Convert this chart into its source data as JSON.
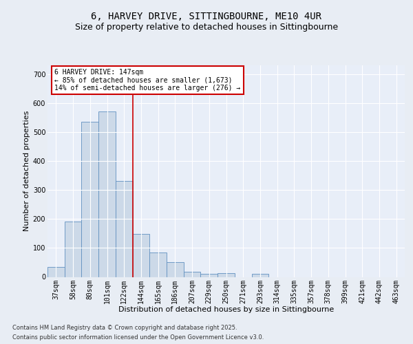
{
  "title_line1": "6, HARVEY DRIVE, SITTINGBOURNE, ME10 4UR",
  "title_line2": "Size of property relative to detached houses in Sittingbourne",
  "xlabel": "Distribution of detached houses by size in Sittingbourne",
  "ylabel": "Number of detached properties",
  "categories": [
    "37sqm",
    "58sqm",
    "80sqm",
    "101sqm",
    "122sqm",
    "144sqm",
    "165sqm",
    "186sqm",
    "207sqm",
    "229sqm",
    "250sqm",
    "271sqm",
    "293sqm",
    "314sqm",
    "335sqm",
    "357sqm",
    "378sqm",
    "399sqm",
    "421sqm",
    "442sqm",
    "463sqm"
  ],
  "bar_heights": [
    35,
    192,
    535,
    570,
    330,
    148,
    85,
    50,
    18,
    10,
    12,
    0,
    10,
    0,
    0,
    0,
    0,
    0,
    0,
    0,
    0
  ],
  "bar_color": "#ccd9e8",
  "bar_edge_color": "#6090c0",
  "vline_pos": 4.5,
  "vline_color": "#cc0000",
  "annotation_text": "6 HARVEY DRIVE: 147sqm\n← 85% of detached houses are smaller (1,673)\n14% of semi-detached houses are larger (276) →",
  "annotation_box_color": "#ffffff",
  "annotation_box_edge": "#cc0000",
  "bg_color": "#e8edf4",
  "plot_bg_color": "#e8eef8",
  "grid_color": "#ffffff",
  "yticks": [
    0,
    100,
    200,
    300,
    400,
    500,
    600,
    700
  ],
  "ylim": [
    0,
    730
  ],
  "footer_line1": "Contains HM Land Registry data © Crown copyright and database right 2025.",
  "footer_line2": "Contains public sector information licensed under the Open Government Licence v3.0.",
  "title_fontsize": 10,
  "subtitle_fontsize": 9,
  "axis_label_fontsize": 8,
  "tick_fontsize": 7,
  "annot_fontsize": 7
}
